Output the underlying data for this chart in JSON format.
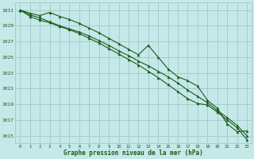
{
  "title": "Graphe pression niveau de la mer (hPa)",
  "bg_color": "#c5e8e8",
  "grid_color": "#a0c8c8",
  "line_color": "#1a5c1a",
  "xlim": [
    -0.5,
    23.5
  ],
  "ylim": [
    1014.0,
    1032.0
  ],
  "yticks": [
    1015,
    1017,
    1019,
    1021,
    1023,
    1025,
    1027,
    1029,
    1031
  ],
  "xticks": [
    0,
    1,
    2,
    3,
    4,
    5,
    6,
    7,
    8,
    9,
    10,
    11,
    12,
    13,
    14,
    15,
    16,
    17,
    18,
    19,
    20,
    21,
    22,
    23
  ],
  "hours": [
    0,
    1,
    2,
    3,
    4,
    5,
    6,
    7,
    8,
    9,
    10,
    11,
    12,
    13,
    14,
    15,
    16,
    17,
    18,
    19,
    20,
    21,
    22,
    23
  ],
  "line1": [
    1031.0,
    1030.6,
    1030.3,
    1030.7,
    1030.2,
    1029.8,
    1029.3,
    1028.7,
    1028.1,
    1027.4,
    1026.7,
    1026.0,
    1025.3,
    1026.5,
    1025.0,
    1023.5,
    1022.5,
    1022.0,
    1021.3,
    1019.5,
    1018.5,
    1016.5,
    1015.5,
    1015.6
  ],
  "line2": [
    1031.0,
    1030.4,
    1030.0,
    1029.5,
    1029.0,
    1028.6,
    1028.2,
    1027.7,
    1027.1,
    1026.5,
    1025.8,
    1025.2,
    1024.5,
    1023.9,
    1023.2,
    1022.5,
    1021.7,
    1020.8,
    1020.0,
    1019.2,
    1018.2,
    1017.3,
    1016.3,
    1015.0
  ],
  "line3": [
    1031.0,
    1030.2,
    1029.7,
    1029.4,
    1028.9,
    1028.5,
    1028.0,
    1027.4,
    1026.8,
    1026.1,
    1025.4,
    1024.7,
    1024.0,
    1023.2,
    1022.4,
    1021.5,
    1020.6,
    1019.7,
    1019.1,
    1018.9,
    1018.0,
    1017.0,
    1016.0,
    1014.5
  ]
}
